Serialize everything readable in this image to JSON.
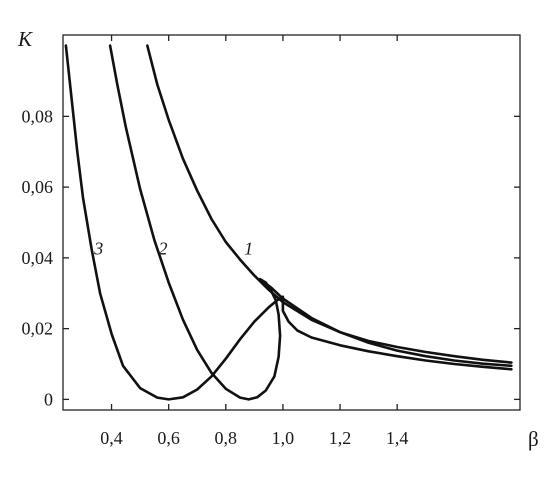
{
  "chart_data": {
    "type": "line",
    "title": "",
    "xlabel": "β",
    "ylabel": "K",
    "xlim": [
      0.23,
      1.83
    ],
    "ylim": [
      -0.003,
      0.103
    ],
    "x_ticks": [
      {
        "value": 0.4,
        "label": "0,4"
      },
      {
        "value": 0.6,
        "label": "0,6"
      },
      {
        "value": 0.8,
        "label": "0,8"
      },
      {
        "value": 1.0,
        "label": "1,0"
      },
      {
        "value": 1.2,
        "label": "1,2"
      },
      {
        "value": 1.4,
        "label": "1,4"
      }
    ],
    "y_ticks": [
      {
        "value": 0.0,
        "label": "0"
      },
      {
        "value": 0.02,
        "label": "0,02"
      },
      {
        "value": 0.04,
        "label": "0,04"
      },
      {
        "value": 0.06,
        "label": "0,06"
      },
      {
        "value": 0.08,
        "label": "0,08"
      }
    ],
    "grid": false,
    "legend": "none",
    "series": [
      {
        "label": "1",
        "label_pos": {
          "x": 0.88,
          "y": 0.041
        },
        "points": [
          [
            0.525,
            0.1
          ],
          [
            0.56,
            0.089
          ],
          [
            0.6,
            0.079
          ],
          [
            0.65,
            0.068
          ],
          [
            0.7,
            0.059
          ],
          [
            0.75,
            0.051
          ],
          [
            0.8,
            0.0445
          ],
          [
            0.85,
            0.0395
          ],
          [
            0.9,
            0.035
          ],
          [
            0.95,
            0.031
          ],
          [
            1.0,
            0.0275
          ],
          [
            1.1,
            0.0225
          ],
          [
            1.2,
            0.019
          ],
          [
            1.3,
            0.0165
          ],
          [
            1.4,
            0.0148
          ],
          [
            1.5,
            0.0134
          ],
          [
            1.6,
            0.0122
          ],
          [
            1.7,
            0.0112
          ],
          [
            1.8,
            0.0104
          ]
        ]
      },
      {
        "label": "2",
        "label_pos": {
          "x": 0.58,
          "y": 0.041
        },
        "points": [
          [
            0.395,
            0.1
          ],
          [
            0.42,
            0.089
          ],
          [
            0.45,
            0.077
          ],
          [
            0.5,
            0.0595
          ],
          [
            0.55,
            0.045
          ],
          [
            0.6,
            0.033
          ],
          [
            0.65,
            0.0225
          ],
          [
            0.7,
            0.014
          ],
          [
            0.75,
            0.0075
          ],
          [
            0.8,
            0.003
          ],
          [
            0.85,
            0.0005
          ],
          [
            0.88,
            0.0
          ],
          [
            0.91,
            0.0006
          ],
          [
            0.94,
            0.0025
          ],
          [
            0.97,
            0.0065
          ],
          [
            0.985,
            0.012
          ],
          [
            0.99,
            0.018
          ],
          [
            0.985,
            0.024
          ],
          [
            0.975,
            0.028
          ],
          [
            0.96,
            0.0305
          ],
          [
            0.94,
            0.033
          ],
          [
            0.92,
            0.034
          ],
          [
            0.92,
            0.034
          ],
          [
            0.96,
            0.0315
          ],
          [
            1.0,
            0.0285
          ],
          [
            1.1,
            0.023
          ],
          [
            1.2,
            0.019
          ],
          [
            1.3,
            0.016
          ],
          [
            1.4,
            0.0138
          ],
          [
            1.5,
            0.0122
          ],
          [
            1.6,
            0.011
          ],
          [
            1.7,
            0.0101
          ],
          [
            1.8,
            0.0095
          ]
        ]
      },
      {
        "label": "3",
        "label_pos": {
          "x": 0.355,
          "y": 0.041
        },
        "points": [
          [
            0.24,
            0.1
          ],
          [
            0.26,
            0.085
          ],
          [
            0.28,
            0.07
          ],
          [
            0.3,
            0.057
          ],
          [
            0.33,
            0.0425
          ],
          [
            0.36,
            0.03
          ],
          [
            0.4,
            0.0185
          ],
          [
            0.44,
            0.0095
          ],
          [
            0.5,
            0.0032
          ],
          [
            0.56,
            0.0005
          ],
          [
            0.6,
            0.0
          ],
          [
            0.65,
            0.0006
          ],
          [
            0.7,
            0.0028
          ],
          [
            0.75,
            0.0065
          ],
          [
            0.8,
            0.0115
          ],
          [
            0.85,
            0.017
          ],
          [
            0.9,
            0.022
          ],
          [
            0.95,
            0.026
          ],
          [
            0.98,
            0.028
          ],
          [
            1.0,
            0.029
          ],
          [
            1.0,
            0.025
          ],
          [
            1.02,
            0.022
          ],
          [
            1.05,
            0.0195
          ],
          [
            1.1,
            0.0175
          ],
          [
            1.2,
            0.0153
          ],
          [
            1.3,
            0.0136
          ],
          [
            1.4,
            0.0122
          ],
          [
            1.5,
            0.011
          ],
          [
            1.6,
            0.01
          ],
          [
            1.7,
            0.0092
          ],
          [
            1.8,
            0.0085
          ]
        ]
      }
    ]
  }
}
